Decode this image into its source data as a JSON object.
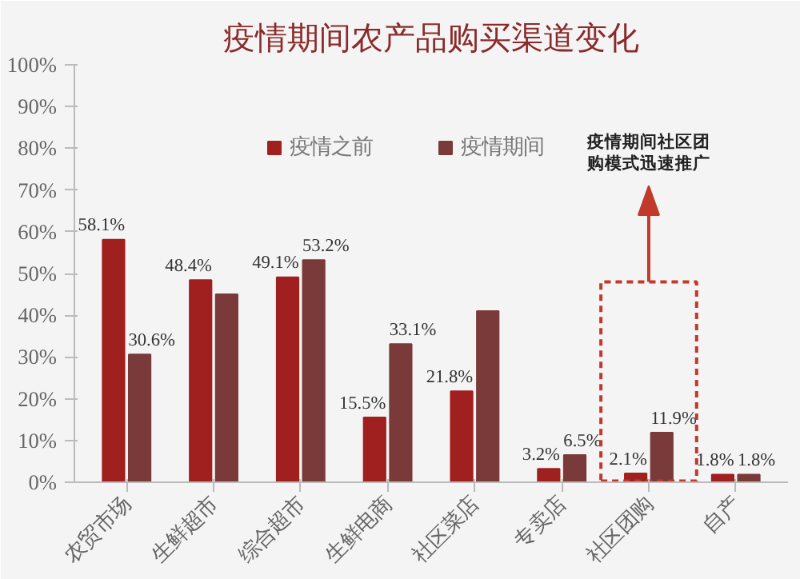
{
  "chart_data": {
    "type": "bar",
    "title": "疫情期间农产品购买渠道变化",
    "categories": [
      "农贸市场",
      "生鲜超市",
      "综合超市",
      "生鲜电商",
      "社区菜店",
      "专卖店",
      "社区团购",
      "自产"
    ],
    "series": [
      {
        "name": "疫情之前",
        "color": "#a01f1f",
        "values": [
          58.1,
          48.4,
          49.1,
          15.5,
          21.8,
          3.2,
          2.1,
          1.8
        ],
        "value_labels": [
          "58.1%",
          "48.4%",
          "49.1%",
          "15.5%",
          "21.8%",
          "3.2%",
          "2.1%",
          "1.8%"
        ]
      },
      {
        "name": "疫情期间",
        "color": "#7a3a3a",
        "values": [
          30.6,
          45,
          53.2,
          33.1,
          41,
          6.5,
          11.9,
          1.8
        ],
        "value_labels": [
          "30.6%",
          null,
          "53.2%",
          "33.1%",
          null,
          "6.5%",
          "11.9%",
          "1.8%"
        ]
      }
    ],
    "ylim": [
      0,
      100
    ],
    "yticks": [
      {
        "value": 0,
        "label": "0%"
      },
      {
        "value": 10,
        "label": "10%"
      },
      {
        "value": 20,
        "label": "20%"
      },
      {
        "value": 30,
        "label": "30%"
      },
      {
        "value": 40,
        "label": "40%"
      },
      {
        "value": 50,
        "label": "50%"
      },
      {
        "value": 60,
        "label": "60%"
      },
      {
        "value": 70,
        "label": "70%"
      },
      {
        "value": 80,
        "label": "80%"
      },
      {
        "value": 90,
        "label": "90%"
      },
      {
        "value": 100,
        "label": "100%"
      }
    ],
    "grid": false,
    "legend": "top",
    "annotations": [
      "疫情期间社区团购模式迅速推广"
    ]
  }
}
